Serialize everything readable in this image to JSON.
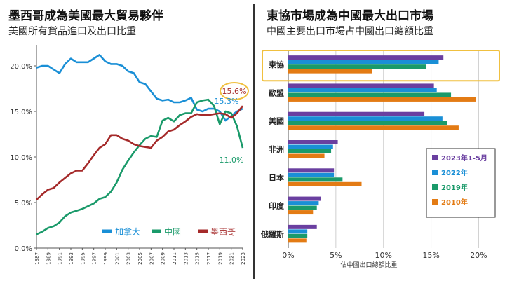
{
  "left": {
    "title": "墨西哥成為美國最大貿易夥伴",
    "subtitle": "美國所有貨品進口及出口比重"
  },
  "right": {
    "title": "東協市場成為中國最大出口市場",
    "subtitle": "中國主要出口市場占中國出口總額比重"
  },
  "colors": {
    "canada": "#1a8fd6",
    "china": "#1a9a6a",
    "mexico": "#a52a2a",
    "s2023": "#6a3fa0",
    "s2022": "#1a8fd6",
    "s2019": "#1a9a6a",
    "s2010": "#e37b14",
    "highlight": "#f0c040"
  },
  "chart_data": [
    {
      "type": "line",
      "title": "墨西哥成為美國最大貿易夥伴",
      "subtitle": "美國所有貨品進口及出口比重",
      "x": [
        "1987",
        "1988",
        "1989",
        "1990",
        "1991",
        "1992",
        "1993",
        "1994",
        "1995",
        "1996",
        "1997",
        "1998",
        "1999",
        "2000",
        "2001",
        "2002",
        "2003",
        "2004",
        "2005",
        "2006",
        "2007",
        "2008",
        "2009",
        "2010",
        "2011",
        "2012",
        "2013",
        "2014",
        "2015",
        "2016",
        "2017",
        "2018",
        "2019",
        "2020",
        "2021",
        "2022",
        "2023"
      ],
      "xticks": [
        "1987",
        "1989",
        "1991",
        "1993",
        "1995",
        "1997",
        "1999",
        "2001",
        "2003",
        "2005",
        "2007",
        "2009",
        "2011",
        "2013",
        "2015",
        "2017",
        "2019",
        "2021",
        "2023"
      ],
      "ylim": [
        0,
        22
      ],
      "yticks": [
        "0.0%",
        "5.0%",
        "10.0%",
        "15.0%",
        "20.0%"
      ],
      "ytick_values": [
        0,
        5,
        10,
        15,
        20
      ],
      "grid": false,
      "legend_position": "bottom",
      "series": [
        {
          "name": "加拿大",
          "color_key": "canada",
          "values": [
            19.8,
            20.0,
            20.0,
            19.6,
            19.2,
            20.2,
            20.8,
            20.4,
            20.4,
            20.4,
            20.8,
            21.2,
            20.5,
            20.2,
            20.2,
            20.0,
            19.4,
            19.2,
            18.2,
            18.0,
            17.2,
            16.4,
            16.2,
            16.3,
            16.0,
            16.0,
            16.2,
            16.5,
            15.2,
            15.0,
            15.3,
            15.3,
            15.0,
            14.0,
            14.5,
            15.0,
            15.3
          ]
        },
        {
          "name": "中國",
          "color_key": "china",
          "values": [
            1.5,
            1.8,
            2.2,
            2.4,
            2.8,
            3.5,
            3.9,
            4.1,
            4.3,
            4.6,
            4.9,
            5.4,
            5.6,
            6.2,
            7.2,
            8.6,
            9.6,
            10.5,
            11.3,
            12.0,
            12.3,
            12.2,
            14.0,
            14.3,
            13.9,
            14.6,
            14.8,
            14.8,
            16.0,
            16.2,
            16.3,
            15.6,
            13.6,
            15.0,
            14.8,
            13.4,
            11.0
          ]
        },
        {
          "name": "墨西哥",
          "color_key": "mexico",
          "values": [
            5.3,
            5.9,
            6.4,
            6.6,
            7.2,
            7.7,
            8.2,
            8.5,
            8.5,
            9.3,
            10.2,
            11.0,
            11.4,
            12.4,
            12.4,
            12.0,
            11.8,
            11.4,
            11.2,
            11.1,
            11.0,
            11.8,
            12.2,
            12.8,
            13.0,
            13.5,
            13.9,
            14.4,
            14.7,
            14.6,
            14.6,
            14.7,
            14.8,
            14.7,
            14.3,
            14.8,
            15.6
          ]
        }
      ],
      "annotations": [
        {
          "text": "15.6%",
          "series": "墨西哥",
          "circled": true
        },
        {
          "text": "15.3%",
          "series": "加拿大"
        },
        {
          "text": "11.0%",
          "series": "中國"
        }
      ]
    },
    {
      "type": "bar",
      "orientation": "horizontal",
      "title": "東協市場成為中國最大出口市場",
      "subtitle": "中國主要出口市場占中國出口總額比重",
      "xlabel": "佔中國出口總額比重",
      "categories": [
        "東協",
        "歐盟",
        "美國",
        "非洲",
        "日本",
        "印度",
        "俄羅斯"
      ],
      "highlighted_category": "東協",
      "xlim": [
        0,
        21
      ],
      "xticks": [
        "0%",
        "5%",
        "10%",
        "15%",
        "20%"
      ],
      "xtick_values": [
        0,
        5,
        10,
        15,
        20
      ],
      "grid": true,
      "legend_position": "right",
      "series": [
        {
          "name": "2023年1-5月",
          "color_key": "s2023",
          "values": [
            16.3,
            15.3,
            14.3,
            5.2,
            4.8,
            3.4,
            3.0
          ]
        },
        {
          "name": "2022年",
          "color_key": "s2022",
          "values": [
            15.8,
            15.6,
            16.2,
            4.7,
            4.8,
            3.2,
            2.0
          ]
        },
        {
          "name": "2019年",
          "color_key": "s2019",
          "values": [
            14.5,
            17.1,
            16.7,
            4.5,
            5.7,
            3.0,
            2.0
          ]
        },
        {
          "name": "2010年",
          "color_key": "s2010",
          "values": [
            8.8,
            19.7,
            17.9,
            3.8,
            7.7,
            2.6,
            1.9
          ]
        }
      ]
    }
  ]
}
